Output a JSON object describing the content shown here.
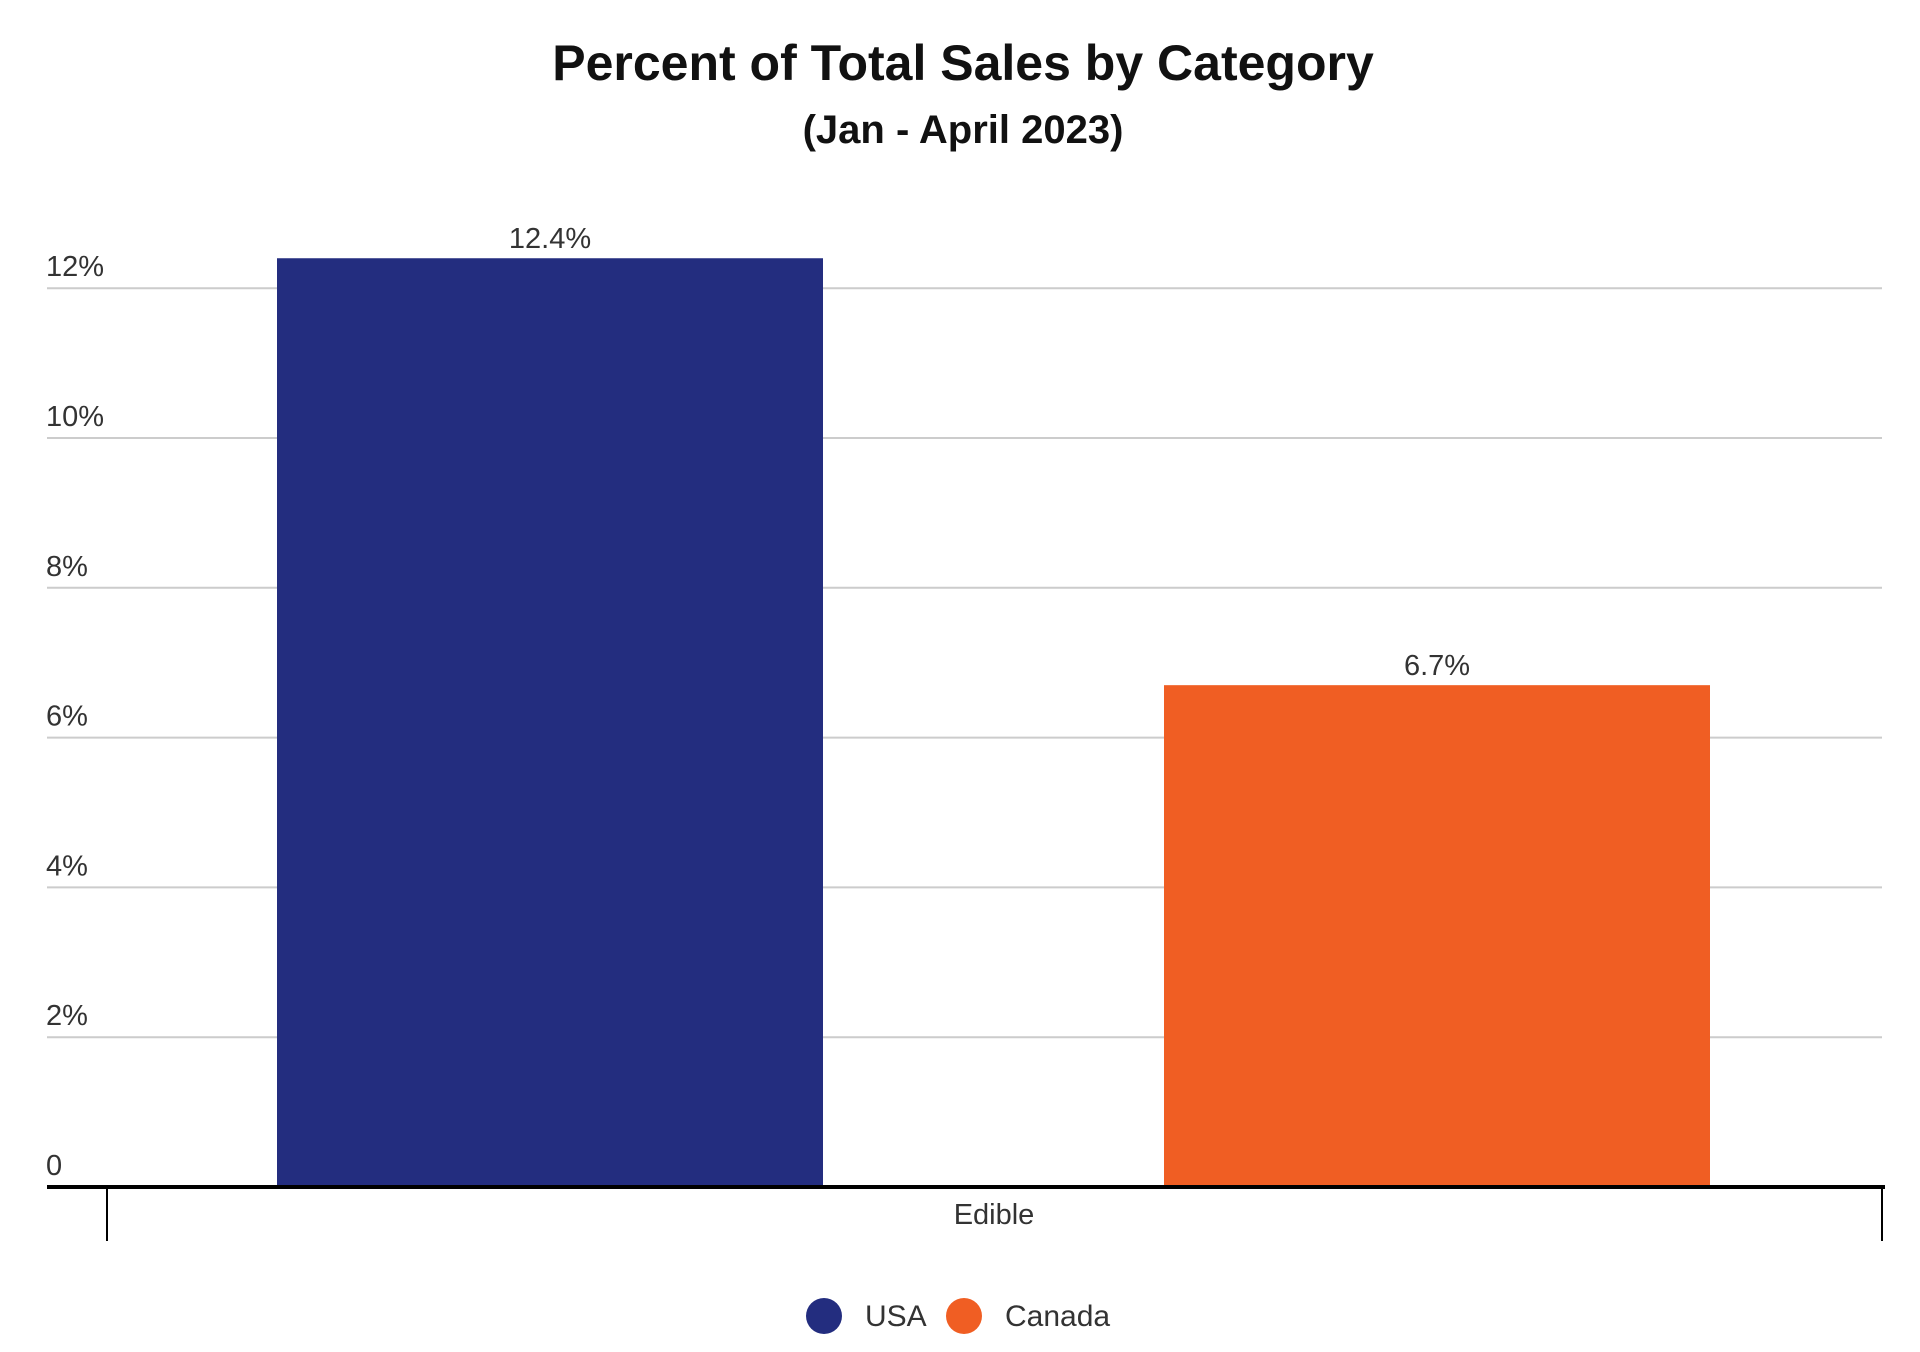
{
  "chart_data": {
    "type": "bar",
    "title": "Percent of Total Sales by Category",
    "subtitle": "(Jan - April 2023)",
    "categories": [
      "Edible"
    ],
    "series": [
      {
        "name": "USA",
        "values": [
          12.4
        ],
        "label": "12.4%",
        "color": "#232d7f"
      },
      {
        "name": "Canada",
        "values": [
          6.7
        ],
        "label": "6.7%",
        "color": "#f05e23"
      }
    ],
    "y_ticks": [
      {
        "value": 0,
        "label": "0"
      },
      {
        "value": 2,
        "label": "2%"
      },
      {
        "value": 4,
        "label": "4%"
      },
      {
        "value": 6,
        "label": "6%"
      },
      {
        "value": 8,
        "label": "8%"
      },
      {
        "value": 10,
        "label": "10%"
      },
      {
        "value": 12,
        "label": "12%"
      }
    ],
    "ylim": [
      0,
      12.4
    ],
    "grid": true,
    "legend_position": "bottom"
  }
}
